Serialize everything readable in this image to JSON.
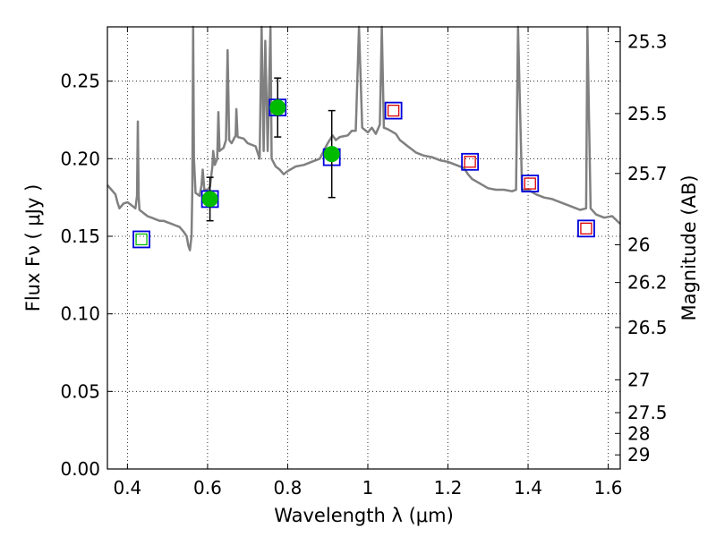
{
  "chart_data": {
    "type": "scatter",
    "title": "",
    "xlabel": "Wavelength  λ (μm)",
    "ylabel": "Flux  Fν  ( μJy )",
    "ylabel_right": "Magnitude (AB)",
    "xlim": [
      0.35,
      1.63
    ],
    "ylim": [
      0.0,
      0.285
    ],
    "grid": true,
    "colors": {
      "spectrum": "#808080",
      "points": "#00bb00",
      "model_box": "#0000dd",
      "data_box_red": "#dd0000",
      "data_box_green": "#00bb00"
    },
    "x_ticks": [
      {
        "v": 0.4,
        "label": "0.4"
      },
      {
        "v": 0.6,
        "label": "0.6"
      },
      {
        "v": 0.8,
        "label": "0.8"
      },
      {
        "v": 1.0,
        "label": "1"
      },
      {
        "v": 1.2,
        "label": "1.2"
      },
      {
        "v": 1.4,
        "label": "1.4"
      },
      {
        "v": 1.6,
        "label": "1.6"
      }
    ],
    "y_ticks": [
      {
        "v": 0.0,
        "label": "0.00"
      },
      {
        "v": 0.05,
        "label": "0.05"
      },
      {
        "v": 0.1,
        "label": "0.10"
      },
      {
        "v": 0.15,
        "label": "0.15"
      },
      {
        "v": 0.2,
        "label": "0.20"
      },
      {
        "v": 0.25,
        "label": "0.25"
      }
    ],
    "mag_ticks": [
      {
        "label": "25.3",
        "flux": 0.2754
      },
      {
        "label": "25.5",
        "flux": 0.2291
      },
      {
        "label": "25.7",
        "flux": 0.1905
      },
      {
        "label": "26",
        "flux": 0.1445
      },
      {
        "label": "26.2",
        "flux": 0.1202
      },
      {
        "label": "26.5",
        "flux": 0.0912
      },
      {
        "label": "27",
        "flux": 0.0575
      },
      {
        "label": "27.5",
        "flux": 0.0363
      },
      {
        "label": "28",
        "flux": 0.0229
      },
      {
        "label": "29",
        "flux": 0.0091
      }
    ],
    "series": [
      {
        "kind": "measurements",
        "points": [
          {
            "x": 0.606,
            "y": 0.174,
            "yerr": 0.014
          },
          {
            "x": 0.775,
            "y": 0.233,
            "yerr": 0.019
          },
          {
            "x": 0.91,
            "y": 0.203,
            "yerr": 0.028
          }
        ]
      },
      {
        "kind": "model_boxes",
        "points": [
          {
            "x": 0.435,
            "y": 0.148,
            "inner": "green"
          },
          {
            "x": 0.606,
            "y": 0.174,
            "inner": "none"
          },
          {
            "x": 0.775,
            "y": 0.233,
            "inner": "none"
          },
          {
            "x": 0.91,
            "y": 0.201,
            "inner": "none"
          },
          {
            "x": 1.064,
            "y": 0.231,
            "inner": "red"
          },
          {
            "x": 1.255,
            "y": 0.198,
            "inner": "red"
          },
          {
            "x": 1.405,
            "y": 0.184,
            "inner": "red"
          },
          {
            "x": 1.545,
            "y": 0.155,
            "inner": "red"
          }
        ]
      },
      {
        "kind": "spectrum",
        "points": [
          [
            0.35,
            0.183
          ],
          [
            0.36,
            0.18
          ],
          [
            0.37,
            0.177
          ],
          [
            0.375,
            0.172
          ],
          [
            0.38,
            0.168
          ],
          [
            0.39,
            0.171
          ],
          [
            0.4,
            0.172
          ],
          [
            0.41,
            0.17
          ],
          [
            0.42,
            0.168
          ],
          [
            0.424,
            0.176
          ],
          [
            0.426,
            0.224
          ],
          [
            0.428,
            0.176
          ],
          [
            0.43,
            0.167
          ],
          [
            0.44,
            0.165
          ],
          [
            0.45,
            0.163
          ],
          [
            0.46,
            0.162
          ],
          [
            0.47,
            0.161
          ],
          [
            0.48,
            0.16
          ],
          [
            0.49,
            0.16
          ],
          [
            0.5,
            0.159
          ],
          [
            0.51,
            0.158
          ],
          [
            0.52,
            0.157
          ],
          [
            0.53,
            0.156
          ],
          [
            0.54,
            0.153
          ],
          [
            0.548,
            0.15
          ],
          [
            0.552,
            0.144
          ],
          [
            0.556,
            0.141
          ],
          [
            0.56,
            0.15
          ],
          [
            0.562,
            0.18
          ],
          [
            0.564,
            0.285
          ],
          [
            0.566,
            0.2
          ],
          [
            0.57,
            0.178
          ],
          [
            0.58,
            0.176
          ],
          [
            0.585,
            0.183
          ],
          [
            0.588,
            0.193
          ],
          [
            0.592,
            0.18
          ],
          [
            0.6,
            0.18
          ],
          [
            0.606,
            0.182
          ],
          [
            0.612,
            0.195
          ],
          [
            0.614,
            0.205
          ],
          [
            0.618,
            0.196
          ],
          [
            0.624,
            0.2
          ],
          [
            0.627,
            0.23
          ],
          [
            0.63,
            0.205
          ],
          [
            0.64,
            0.207
          ],
          [
            0.646,
            0.212
          ],
          [
            0.65,
            0.27
          ],
          [
            0.654,
            0.212
          ],
          [
            0.66,
            0.21
          ],
          [
            0.67,
            0.215
          ],
          [
            0.672,
            0.232
          ],
          [
            0.675,
            0.214
          ],
          [
            0.69,
            0.213
          ],
          [
            0.7,
            0.21
          ],
          [
            0.72,
            0.208
          ],
          [
            0.73,
            0.2
          ],
          [
            0.735,
            0.285
          ],
          [
            0.74,
            0.205
          ],
          [
            0.744,
            0.276
          ],
          [
            0.75,
            0.205
          ],
          [
            0.757,
            0.285
          ],
          [
            0.76,
            0.2
          ],
          [
            0.77,
            0.195
          ],
          [
            0.78,
            0.193
          ],
          [
            0.79,
            0.19
          ],
          [
            0.8,
            0.192
          ],
          [
            0.82,
            0.195
          ],
          [
            0.84,
            0.196
          ],
          [
            0.86,
            0.198
          ],
          [
            0.88,
            0.2
          ],
          [
            0.89,
            0.205
          ],
          [
            0.9,
            0.21
          ],
          [
            0.912,
            0.215
          ],
          [
            0.92,
            0.212
          ],
          [
            0.93,
            0.214
          ],
          [
            0.95,
            0.215
          ],
          [
            0.96,
            0.218
          ],
          [
            0.97,
            0.218
          ],
          [
            0.978,
            0.285
          ],
          [
            0.986,
            0.22
          ],
          [
            1.0,
            0.217
          ],
          [
            1.01,
            0.22
          ],
          [
            1.02,
            0.216
          ],
          [
            1.03,
            0.222
          ],
          [
            1.035,
            0.285
          ],
          [
            1.04,
            0.22
          ],
          [
            1.05,
            0.219
          ],
          [
            1.07,
            0.216
          ],
          [
            1.08,
            0.212
          ],
          [
            1.09,
            0.21
          ],
          [
            1.1,
            0.208
          ],
          [
            1.11,
            0.206
          ],
          [
            1.12,
            0.204
          ],
          [
            1.14,
            0.202
          ],
          [
            1.16,
            0.201
          ],
          [
            1.18,
            0.199
          ],
          [
            1.2,
            0.198
          ],
          [
            1.22,
            0.196
          ],
          [
            1.24,
            0.194
          ],
          [
            1.25,
            0.19
          ],
          [
            1.26,
            0.187
          ],
          [
            1.28,
            0.184
          ],
          [
            1.3,
            0.181
          ],
          [
            1.32,
            0.18
          ],
          [
            1.34,
            0.18
          ],
          [
            1.36,
            0.179
          ],
          [
            1.37,
            0.18
          ],
          [
            1.375,
            0.285
          ],
          [
            1.385,
            0.18
          ],
          [
            1.4,
            0.18
          ],
          [
            1.42,
            0.177
          ],
          [
            1.44,
            0.175
          ],
          [
            1.46,
            0.174
          ],
          [
            1.48,
            0.172
          ],
          [
            1.5,
            0.17
          ],
          [
            1.52,
            0.168
          ],
          [
            1.53,
            0.167
          ],
          [
            1.545,
            0.168
          ],
          [
            1.548,
            0.285
          ],
          [
            1.556,
            0.168
          ],
          [
            1.57,
            0.164
          ],
          [
            1.59,
            0.162
          ],
          [
            1.61,
            0.163
          ],
          [
            1.63,
            0.158
          ]
        ]
      }
    ]
  }
}
